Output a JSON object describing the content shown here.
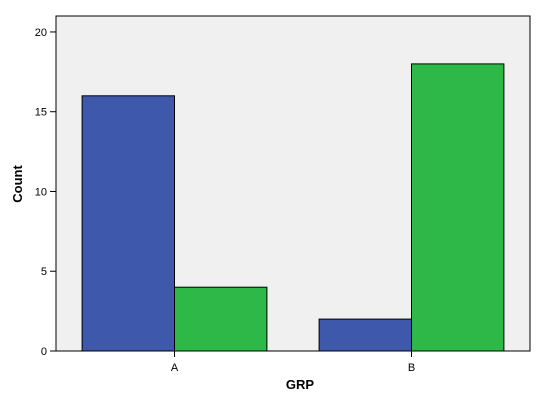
{
  "chart_data": {
    "type": "bar",
    "title": "",
    "xlabel": "GRP",
    "ylabel": "Count",
    "categories": [
      "A",
      "B"
    ],
    "series": [
      {
        "values": [
          16,
          2
        ],
        "color": "#3e58ac"
      },
      {
        "values": [
          4,
          18
        ],
        "color": "#2eb848"
      }
    ],
    "ylim": [
      0,
      21
    ],
    "yticks": [
      0,
      5,
      10,
      15,
      20
    ],
    "plot_background": "#f0f0f0",
    "grid": false,
    "legend": "none"
  }
}
